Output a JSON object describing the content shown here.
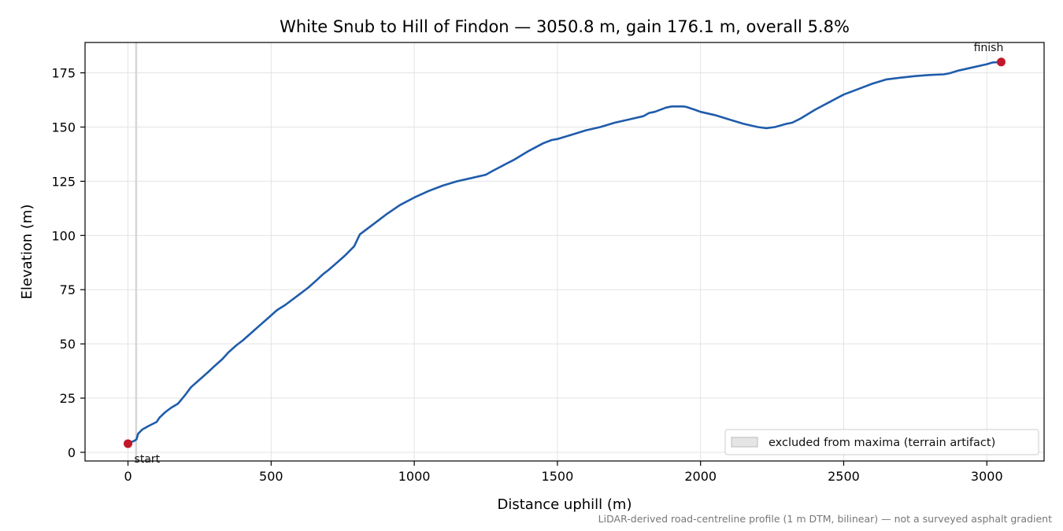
{
  "chart_data": {
    "type": "line",
    "title": "White Snub to Hill of Findon — 3050.8 m, gain 176.1 m, overall 5.8%",
    "xlabel": "Distance uphill (m)",
    "ylabel": "Elevation (m)",
    "xlim": [
      -150,
      3200
    ],
    "ylim": [
      -4,
      189
    ],
    "xticks": [
      0,
      500,
      1000,
      1500,
      2000,
      2500,
      3000
    ],
    "yticks": [
      0,
      25,
      50,
      75,
      100,
      125,
      150,
      175
    ],
    "grid": true,
    "legend_placement": "lower-right",
    "legend": [
      {
        "label": "excluded from maxima (terrain artifact)",
        "color": "#d3d3d3"
      }
    ],
    "excluded_region": {
      "x_start": 25,
      "x_end": 32
    },
    "series": [
      {
        "color": "#1f5cab",
        "x": [
          0,
          25,
          30,
          35,
          50,
          70,
          100,
          110,
          130,
          150,
          175,
          200,
          220,
          250,
          280,
          300,
          330,
          350,
          380,
          400,
          430,
          460,
          490,
          520,
          550,
          570,
          600,
          630,
          660,
          680,
          700,
          730,
          760,
          790,
          810,
          850,
          880,
          900,
          950,
          1000,
          1050,
          1100,
          1150,
          1200,
          1250,
          1270,
          1320,
          1350,
          1400,
          1450,
          1480,
          1500,
          1550,
          1600,
          1650,
          1700,
          1750,
          1800,
          1820,
          1840,
          1880,
          1900,
          1940,
          1950,
          1980,
          2000,
          2050,
          2100,
          2150,
          2200,
          2230,
          2260,
          2300,
          2320,
          2350,
          2400,
          2450,
          2500,
          2550,
          2600,
          2650,
          2700,
          2750,
          2800,
          2850,
          2870,
          2900,
          2950,
          3000,
          3020,
          3050
        ],
        "y": [
          4,
          5.5,
          6,
          8.5,
          10.5,
          12,
          14,
          16,
          18.5,
          20.5,
          22.5,
          26.5,
          30,
          33.5,
          37,
          39.5,
          43,
          46,
          49.5,
          51.5,
          55,
          58.5,
          62,
          65.5,
          68,
          70,
          73,
          76,
          79.5,
          82,
          84,
          87.5,
          91,
          95,
          100.5,
          104.5,
          107.5,
          109.5,
          114,
          117.5,
          120.5,
          123,
          125,
          126.5,
          128,
          129.5,
          133,
          135,
          139,
          142.5,
          144,
          144.5,
          146.5,
          148.5,
          150,
          152,
          153.5,
          155,
          156.5,
          157,
          159,
          159.5,
          159.5,
          159.3,
          158,
          157,
          155.5,
          153.5,
          151.5,
          150,
          149.5,
          150,
          151.5,
          152,
          154,
          158,
          161.5,
          165,
          167.5,
          170,
          172,
          172.8,
          173.5,
          174,
          174.3,
          174.8,
          176,
          177.5,
          179,
          179.8,
          180
        ]
      }
    ],
    "points": [
      {
        "label": "start",
        "x": 0,
        "y": 4,
        "color": "#c0182a"
      },
      {
        "label": "finish",
        "x": 3050,
        "y": 180,
        "color": "#c0182a"
      }
    ],
    "footnote": "LiDAR-derived road-centreline profile (1 m DTM, bilinear) — not a surveyed asphalt gradient"
  }
}
